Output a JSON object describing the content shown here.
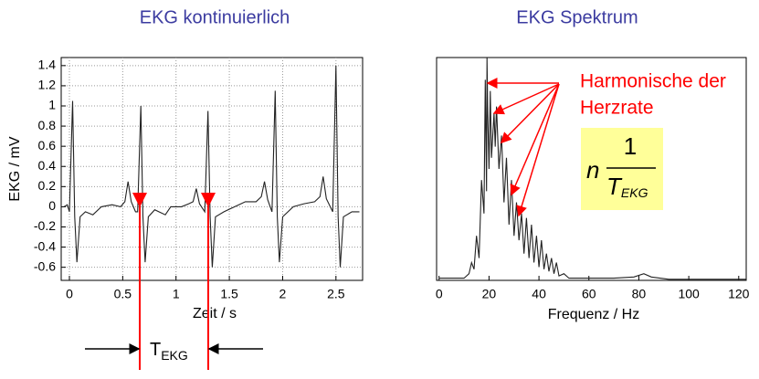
{
  "chart_data": [
    {
      "type": "line",
      "title": "EKG kontinuierlich",
      "x_label": "Zeit / s",
      "y_label": "EKG / mV",
      "color": "#222222",
      "grid": true,
      "xlim": [
        -0.077,
        2.75
      ],
      "ylim": [
        -0.73,
        1.48
      ],
      "xticks": [
        0,
        0.5,
        1,
        1.5,
        2,
        2.5
      ],
      "yticks": [
        -0.6,
        -0.4,
        -0.2,
        0,
        0.2,
        0.4,
        0.6,
        0.8,
        1,
        1.2,
        1.4
      ],
      "x": [
        -0.05,
        -0.02,
        0.0,
        0.03,
        0.05,
        0.07,
        0.1,
        0.15,
        0.22,
        0.3,
        0.4,
        0.48,
        0.52,
        0.55,
        0.58,
        0.62,
        0.64,
        0.67,
        0.69,
        0.71,
        0.74,
        0.8,
        0.9,
        0.95,
        1.05,
        1.12,
        1.16,
        1.19,
        1.22,
        1.27,
        1.3,
        1.32,
        1.34,
        1.37,
        1.45,
        1.55,
        1.65,
        1.75,
        1.8,
        1.83,
        1.86,
        1.9,
        1.93,
        1.95,
        1.97,
        2.0,
        2.1,
        2.2,
        2.3,
        2.35,
        2.38,
        2.41,
        2.47,
        2.5,
        2.52,
        2.54,
        2.57,
        2.65,
        2.72
      ],
      "values": [
        0,
        0.02,
        -0.05,
        1.05,
        -0.1,
        -0.55,
        -0.1,
        -0.05,
        -0.08,
        0.0,
        0.02,
        0.0,
        0.05,
        0.25,
        0.05,
        -0.05,
        -0.05,
        1.0,
        -0.1,
        -0.55,
        -0.1,
        -0.03,
        -0.08,
        0.0,
        0.0,
        0.03,
        0.05,
        0.18,
        0.03,
        -0.05,
        0.95,
        -0.1,
        -0.6,
        -0.1,
        -0.05,
        0.0,
        0.05,
        0.05,
        0.1,
        0.25,
        0.07,
        -0.05,
        1.15,
        -0.1,
        -0.55,
        -0.1,
        0.0,
        0.03,
        0.05,
        0.1,
        0.3,
        0.08,
        -0.05,
        1.4,
        -0.1,
        -0.6,
        -0.1,
        -0.05,
        -0.05
      ],
      "period_label": {
        "text": "T",
        "subscript": "EKG"
      }
    },
    {
      "type": "line",
      "title": "EKG  Spektrum",
      "x_label": "Frequenz  / Hz",
      "color": "#222222",
      "grid": false,
      "xlim": [
        -1,
        123
      ],
      "ylim": [
        0,
        1
      ],
      "xticks": [
        0,
        20,
        40,
        60,
        80,
        100,
        120
      ],
      "x": [
        0,
        10,
        12,
        13,
        14,
        15,
        16,
        17,
        18,
        18.5,
        19,
        19.2,
        19.5,
        20,
        20.5,
        21,
        22,
        22.5,
        23,
        24,
        25,
        26,
        27,
        28,
        29,
        30,
        31,
        32,
        33,
        34,
        35,
        36,
        37,
        38,
        39,
        40,
        41,
        42,
        43,
        44,
        45,
        46,
        47,
        48,
        50,
        52,
        60,
        70,
        78,
        82,
        85,
        92,
        123
      ],
      "values": [
        0.01,
        0.01,
        0.03,
        0.08,
        0.05,
        0.2,
        0.1,
        0.45,
        0.3,
        0.9,
        0.4,
        1.0,
        0.75,
        0.5,
        0.85,
        0.55,
        0.75,
        0.6,
        0.78,
        0.5,
        0.65,
        0.35,
        0.55,
        0.25,
        0.45,
        0.2,
        0.35,
        0.18,
        0.3,
        0.12,
        0.28,
        0.1,
        0.25,
        0.08,
        0.2,
        0.06,
        0.18,
        0.05,
        0.12,
        0.04,
        0.1,
        0.03,
        0.08,
        0.02,
        0.03,
        0.01,
        0.01,
        0.01,
        0.015,
        0.03,
        0.015,
        0.005,
        0.005
      ],
      "annotation_lines": [
        "Harmonische der",
        "Herzrate"
      ],
      "formula": {
        "factor": "n",
        "numerator": "1",
        "denominator": "T",
        "subscript": "EKG"
      }
    }
  ]
}
